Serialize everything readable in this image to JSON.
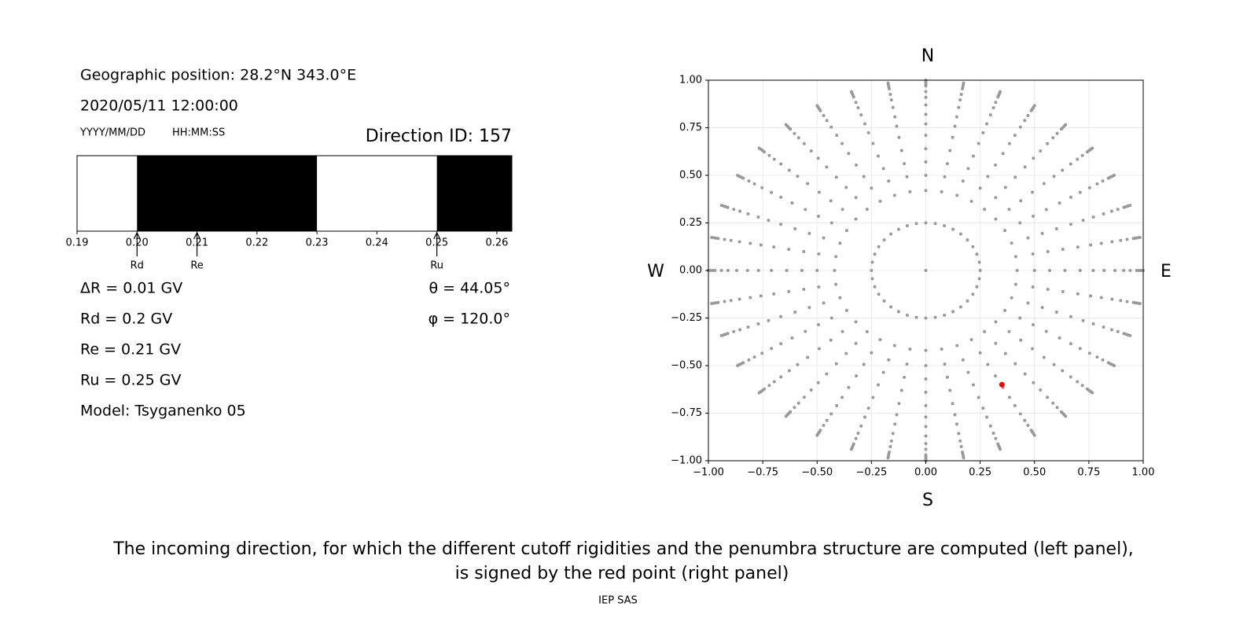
{
  "header": {
    "position": "Geographic position: 28.2°N 343.0°E",
    "datetime": "2020/05/11 12:00:00",
    "date_format": "YYYY/MM/DD",
    "time_format": "HH:MM:SS",
    "direction": "Direction ID: 157"
  },
  "info": {
    "delta_r": "ΔR = 0.01 GV",
    "rd": "Rd = 0.2 GV",
    "re": "Re = 0.21 GV",
    "ru": "Ru = 0.25 GV",
    "model": "Model: Tsyganenko 05",
    "theta": "θ = 44.05°",
    "phi": "φ = 120.0°"
  },
  "chart_data": [
    {
      "type": "penumbra",
      "xlim": [
        0.19,
        0.2625
      ],
      "xticks": [
        0.19,
        {
          "value": 0.2,
          "label": "0.20"
        },
        0.21,
        0.22,
        0.23,
        0.24,
        0.25,
        0.26
      ],
      "bands": [
        [
          0.2,
          0.23
        ],
        [
          0.25,
          0.2625
        ]
      ],
      "band_color": "#000000",
      "markers": {
        "labels": [
          "Rd",
          "Re",
          "Ru"
        ],
        "values": [
          0.2,
          0.21,
          0.25
        ]
      }
    },
    {
      "type": "scatter",
      "xlim": [
        -1,
        1
      ],
      "ylim": [
        -1,
        1
      ],
      "xticks": [
        {
          "value": -1,
          "label": "−1.00"
        },
        {
          "value": -0.75,
          "label": "−0.75"
        },
        {
          "value": -0.5,
          "label": "−0.50"
        },
        {
          "value": -0.25,
          "label": "−0.25"
        },
        {
          "value": 0,
          "label": "0.00"
        },
        {
          "value": 0.25,
          "label": "0.25"
        },
        {
          "value": 0.5,
          "label": "0.50"
        },
        {
          "value": 0.75,
          "label": "0.75"
        },
        {
          "value": 1,
          "label": "1.00"
        }
      ],
      "yticks": [
        {
          "value": -1,
          "label": "−1.00"
        },
        {
          "value": -0.75,
          "label": "−0.75"
        },
        {
          "value": -0.5,
          "label": "−0.50"
        },
        {
          "value": -0.25,
          "label": "−0.25"
        },
        {
          "value": 0,
          "label": "0.00"
        },
        {
          "value": 0.25,
          "label": "0.25"
        },
        {
          "value": 0.5,
          "label": "0.50"
        },
        {
          "value": 0.75,
          "label": "0.75"
        },
        {
          "value": 1,
          "label": "1.00"
        }
      ],
      "grid": true,
      "compass": {
        "north": "N",
        "south": "S",
        "west": "W",
        "east": "E"
      },
      "directions": {
        "color": "#999999",
        "center": {
          "x": 0,
          "y": 0
        },
        "radii": [
          0.25,
          0.42,
          0.5,
          0.57,
          0.64,
          0.71,
          0.77,
          0.82,
          0.87,
          0.91,
          0.94,
          0.97,
          0.98,
          0.99,
          1
        ],
        "azimuths": [
          0,
          10,
          20,
          30,
          40,
          50,
          60,
          70,
          80,
          90,
          100,
          110,
          120,
          130,
          140,
          150,
          160,
          170,
          180,
          190,
          200,
          210,
          220,
          230,
          240,
          250,
          260,
          270,
          280,
          290,
          300,
          310,
          320,
          330,
          340,
          350
        ]
      },
      "selected": {
        "color": "#ff0000",
        "x": 0.35,
        "y": -0.6
      }
    }
  ],
  "footer": {
    "caption": [
      "The incoming direction, for which the different cutoff rigidities and the penumbra structure are computed (left panel),",
      "is signed by the red point (right panel)"
    ],
    "credit": "IEP SAS"
  }
}
